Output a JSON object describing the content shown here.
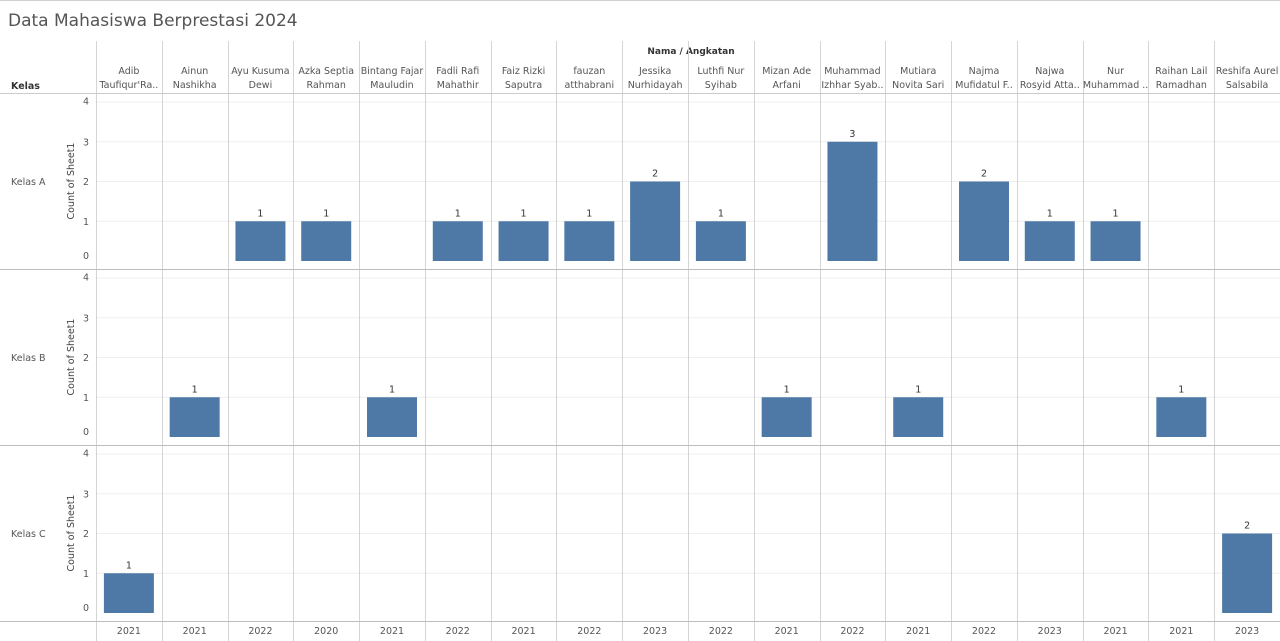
{
  "title": "Data Mahasiswa Berprestasi 2024",
  "chart_data": {
    "type": "bar",
    "title": "Data Mahasiswa Berprestasi 2024",
    "column_header": "Nama / Angkatan",
    "row_header": "Kelas",
    "ylabel": "Count of Sheet1",
    "ylim": [
      0,
      4
    ],
    "yticks": [
      0,
      1,
      2,
      3,
      4
    ],
    "bar_color": "#4e79a7",
    "grid": true,
    "categories": [
      {
        "name_lines": [
          "Adib",
          "Taufiqur'Ra.."
        ],
        "year": "2021"
      },
      {
        "name_lines": [
          "Ainun",
          "Nashikha"
        ],
        "year": "2021"
      },
      {
        "name_lines": [
          "Ayu Kusuma",
          "Dewi"
        ],
        "year": "2022"
      },
      {
        "name_lines": [
          "Azka Septia",
          "Rahman"
        ],
        "year": "2020"
      },
      {
        "name_lines": [
          "Bintang Fajar",
          "Mauludin"
        ],
        "year": "2021"
      },
      {
        "name_lines": [
          "Fadli Rafi",
          "Mahathir"
        ],
        "year": "2022"
      },
      {
        "name_lines": [
          "Faiz Rizki",
          "Saputra"
        ],
        "year": "2021"
      },
      {
        "name_lines": [
          "fauzan",
          "atthabrani"
        ],
        "year": "2022"
      },
      {
        "name_lines": [
          "Jessika",
          "Nurhidayah"
        ],
        "year": "2023"
      },
      {
        "name_lines": [
          "Luthfi Nur",
          "Syihab"
        ],
        "year": "2022"
      },
      {
        "name_lines": [
          "Mizan Ade",
          "Arfani"
        ],
        "year": "2021"
      },
      {
        "name_lines": [
          "Muhammad",
          "Izhhar Syab.."
        ],
        "year": "2022"
      },
      {
        "name_lines": [
          "Mutiara",
          "Novita Sari"
        ],
        "year": "2021"
      },
      {
        "name_lines": [
          "Najma",
          "Mufidatul F.."
        ],
        "year": "2022"
      },
      {
        "name_lines": [
          "Najwa",
          "Rosyid Atta.."
        ],
        "year": "2023"
      },
      {
        "name_lines": [
          "Nur",
          "Muhammad .."
        ],
        "year": "2021"
      },
      {
        "name_lines": [
          "Raihan Lail",
          "Ramadhan"
        ],
        "year": "2021"
      },
      {
        "name_lines": [
          "Reshifa Aurel",
          "Salsabila"
        ],
        "year": "2023"
      }
    ],
    "series": [
      {
        "name": "Kelas A",
        "values": [
          null,
          null,
          1,
          1,
          null,
          1,
          1,
          1,
          2,
          1,
          null,
          3,
          null,
          2,
          1,
          1,
          null,
          null
        ]
      },
      {
        "name": "Kelas B",
        "values": [
          null,
          1,
          null,
          null,
          1,
          null,
          null,
          null,
          null,
          null,
          1,
          null,
          1,
          null,
          null,
          null,
          1,
          null
        ]
      },
      {
        "name": "Kelas C",
        "values": [
          1,
          null,
          null,
          null,
          null,
          null,
          null,
          null,
          null,
          null,
          null,
          null,
          null,
          null,
          null,
          null,
          null,
          2
        ]
      }
    ]
  }
}
